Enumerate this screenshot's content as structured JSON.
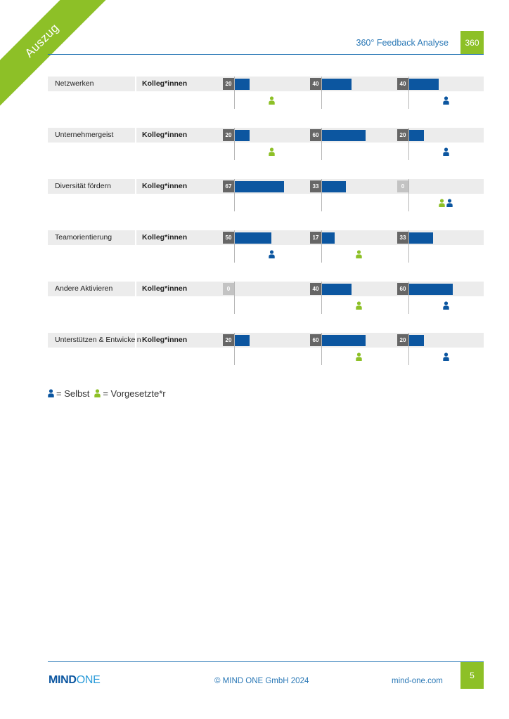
{
  "corner_ribbon": {
    "label": "Auszug"
  },
  "header": {
    "title": "360° Feedback Analyse",
    "badge": "360"
  },
  "colors": {
    "bar": "#0c56a0",
    "selbst": "#0c56a0",
    "vorgesetzte": "#8dc027",
    "accent_green": "#8dc027",
    "accent_blue": "#2a78b6"
  },
  "rows": [
    {
      "competency": "Netzwerken",
      "group": "Kolleg*innen",
      "columns": [
        {
          "value": "20",
          "markers": [
            "vorgesetzte"
          ]
        },
        {
          "value": "40",
          "markers": []
        },
        {
          "value": "40",
          "markers": [
            "selbst"
          ]
        }
      ]
    },
    {
      "competency": "Unternehmergeist",
      "group": "Kolleg*innen",
      "columns": [
        {
          "value": "20",
          "markers": [
            "vorgesetzte"
          ]
        },
        {
          "value": "60",
          "markers": []
        },
        {
          "value": "20",
          "markers": [
            "selbst"
          ]
        }
      ]
    },
    {
      "competency": "Diversität fördern",
      "group": "Kolleg*innen",
      "columns": [
        {
          "value": "67",
          "markers": []
        },
        {
          "value": "33",
          "markers": []
        },
        {
          "value": "0",
          "markers": [
            "vorgesetzte",
            "selbst"
          ]
        }
      ]
    },
    {
      "competency": "Teamorientierung",
      "group": "Kolleg*innen",
      "columns": [
        {
          "value": "50",
          "markers": [
            "selbst"
          ]
        },
        {
          "value": "17",
          "markers": [
            "vorgesetzte"
          ]
        },
        {
          "value": "33",
          "markers": []
        }
      ]
    },
    {
      "competency": "Andere Aktivieren",
      "group": "Kolleg*innen",
      "columns": [
        {
          "value": "0",
          "markers": []
        },
        {
          "value": "40",
          "markers": [
            "vorgesetzte"
          ]
        },
        {
          "value": "60",
          "markers": [
            "selbst"
          ]
        }
      ]
    },
    {
      "competency": "Unterstützen & Entwickeln",
      "group": "Kolleg*innen",
      "columns": [
        {
          "value": "20",
          "markers": []
        },
        {
          "value": "60",
          "markers": [
            "vorgesetzte"
          ]
        },
        {
          "value": "20",
          "markers": [
            "selbst"
          ]
        }
      ]
    }
  ],
  "legend": {
    "selbst_label": "= Selbst",
    "vorgesetzte_label": "= Vorgesetzte*r"
  },
  "footer": {
    "logo_part1": "MIND",
    "logo_part2": "ONE",
    "copyright": "© MIND ONE GmbH 2024",
    "url": "mind-one.com",
    "page_number": "5"
  }
}
